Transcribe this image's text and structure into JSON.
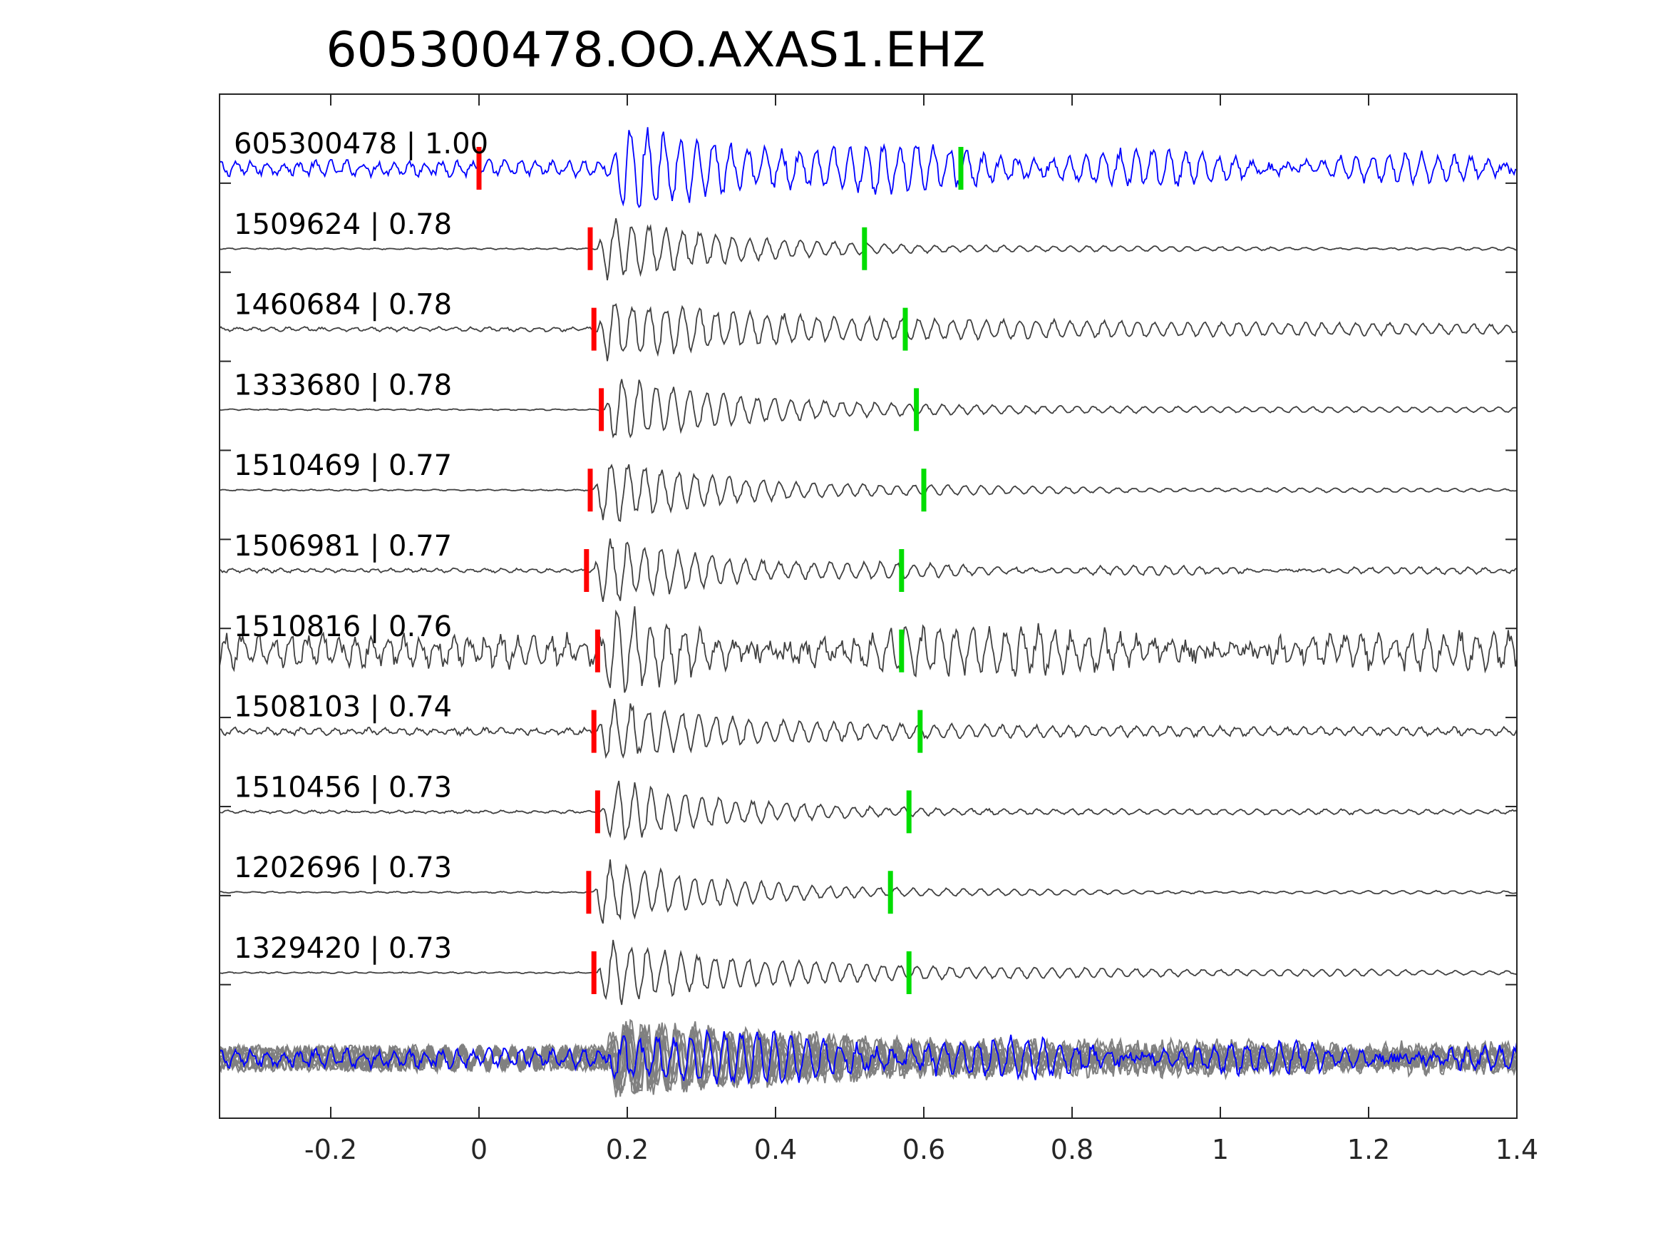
{
  "chart_data": {
    "type": "line",
    "title": "605300478.OO.AXAS1.EHZ",
    "xlabel": "",
    "ylabel": "",
    "xlim": [
      -0.35,
      1.4
    ],
    "xticks": [
      -0.2,
      0,
      0.2,
      0.4,
      0.6,
      0.8,
      1,
      1.2,
      1.4
    ],
    "xtick_labels": [
      "-0.2",
      "0",
      "0.2",
      "0.4",
      "0.6",
      "0.8",
      "1",
      "1.2",
      "1.4"
    ],
    "grid": false,
    "colors": {
      "target_trace": "#0000ff",
      "template_trace": "#404040",
      "stack_trace": "#808080",
      "p_pick": "#ff0000",
      "s_pick": "#00dd00",
      "axes": "#262626"
    },
    "traces": [
      {
        "id": "605300478",
        "score": "1.00",
        "label": "605300478 | 1.00",
        "color": "#0000ff",
        "p_pick": 0.0,
        "s_pick": 0.65,
        "onset": 0.18,
        "coda_amp": 0.8,
        "noise_amp": 0.22
      },
      {
        "id": "1509624",
        "score": "0.78",
        "label": "1509624 | 0.78",
        "color": "#404040",
        "p_pick": 0.15,
        "s_pick": 0.52,
        "onset": 0.16,
        "coda_amp": 0.12,
        "noise_amp": 0.02
      },
      {
        "id": "1460684",
        "score": "0.78",
        "label": "1460684 | 0.78",
        "color": "#404040",
        "p_pick": 0.155,
        "s_pick": 0.575,
        "onset": 0.16,
        "coda_amp": 0.4,
        "noise_amp": 0.06
      },
      {
        "id": "1333680",
        "score": "0.78",
        "label": "1333680 | 0.78",
        "color": "#404040",
        "p_pick": 0.165,
        "s_pick": 0.59,
        "onset": 0.17,
        "coda_amp": 0.2,
        "noise_amp": 0.02
      },
      {
        "id": "1510469",
        "score": "0.77",
        "label": "1510469 | 0.77",
        "color": "#404040",
        "p_pick": 0.15,
        "s_pick": 0.6,
        "onset": 0.155,
        "coda_amp": 0.15,
        "noise_amp": 0.02
      },
      {
        "id": "1506981",
        "score": "0.77",
        "label": "1506981 | 0.77",
        "color": "#404040",
        "p_pick": 0.145,
        "s_pick": 0.57,
        "onset": 0.155,
        "coda_amp": 0.18,
        "noise_amp": 0.06
      },
      {
        "id": "1510816",
        "score": "0.76",
        "label": "1510816 | 0.76",
        "color": "#404040",
        "p_pick": 0.16,
        "s_pick": 0.57,
        "onset": 0.165,
        "coda_amp": 0.55,
        "noise_amp": 0.45
      },
      {
        "id": "1508103",
        "score": "0.74",
        "label": "1508103 | 0.74",
        "color": "#404040",
        "p_pick": 0.155,
        "s_pick": 0.595,
        "onset": 0.16,
        "coda_amp": 0.12,
        "noise_amp": 0.1
      },
      {
        "id": "1510456",
        "score": "0.73",
        "label": "1510456 | 0.73",
        "color": "#404040",
        "p_pick": 0.16,
        "s_pick": 0.58,
        "onset": 0.165,
        "coda_amp": 0.12,
        "noise_amp": 0.04
      },
      {
        "id": "1202696",
        "score": "0.73",
        "label": "1202696 | 0.73",
        "color": "#404040",
        "p_pick": 0.148,
        "s_pick": 0.555,
        "onset": 0.155,
        "coda_amp": 0.1,
        "noise_amp": 0.02
      },
      {
        "id": "1329420",
        "score": "0.73",
        "label": "1329420 | 0.73",
        "color": "#404040",
        "p_pick": 0.155,
        "s_pick": 0.58,
        "onset": 0.16,
        "coda_amp": 0.25,
        "noise_amp": 0.02
      }
    ],
    "stack": {
      "onset": 0.17,
      "coda_amp": 0.5,
      "noise_amp": 0.35,
      "overlay_count": 10
    }
  }
}
